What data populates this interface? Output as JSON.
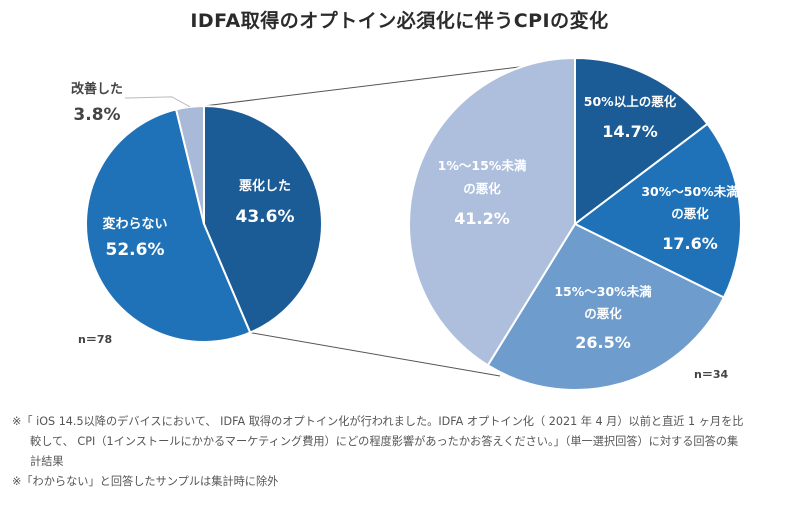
{
  "title": "IDFA取得のオプトイン必須化に伴うCPIの変化",
  "colors": {
    "dark_blue": "#1b5b96",
    "mid_blue": "#2072b8",
    "steel_blue": "#6e9ccc",
    "pale_blue": "#aebfdd",
    "pale_grey_blue": "#a9b9d8",
    "label_light": "#ffffff",
    "label_dark": "#444444",
    "connector": "#555555"
  },
  "chart_data": [
    {
      "type": "pie",
      "name": "overall",
      "sample_label": "n＝78",
      "slices": [
        {
          "label_lines": [
            "悪化した"
          ],
          "value": 43.6,
          "value_label": "43.6%",
          "color": "#1b5b96"
        },
        {
          "label_lines": [
            "変わらない"
          ],
          "value": 52.6,
          "value_label": "52.6%",
          "color": "#2072b8"
        },
        {
          "label_lines": [
            "改善した"
          ],
          "value": 3.8,
          "value_label": "3.8%",
          "color": "#a9b9d8",
          "outside": true
        }
      ]
    },
    {
      "type": "pie",
      "name": "worsened-breakdown",
      "sample_label": "n＝34",
      "slices": [
        {
          "label_lines": [
            "50%以上の悪化"
          ],
          "value": 14.7,
          "value_label": "14.7%",
          "color": "#1b5b96"
        },
        {
          "label_lines": [
            "30%～50%未満",
            "の悪化"
          ],
          "value": 17.6,
          "value_label": "17.6%",
          "color": "#2072b8"
        },
        {
          "label_lines": [
            "15%～30%未満",
            "の悪化"
          ],
          "value": 26.5,
          "value_label": "26.5%",
          "color": "#6e9ccc"
        },
        {
          "label_lines": [
            "1%～15%未満",
            "の悪化"
          ],
          "value": 41.2,
          "value_label": "41.2%",
          "color": "#aebfdd"
        }
      ]
    }
  ],
  "notes": {
    "note1_line1": "※「 iOS 14.5以降のデバイスにおいて、 IDFA 取得のオプトイン化が行われました。IDFA オプトイン化（ 2021 年 4 月）以前と直近 1 ヶ月を比",
    "note1_line2": "較して、 CPI（1インストールにかかるマーケティング費用）にどの程度影響があったかお答えください。」（単一選択回答）に対する回答の集",
    "note1_line3": "計結果",
    "note2": "※「わからない」と回答したサンプルは集計時に除外"
  }
}
